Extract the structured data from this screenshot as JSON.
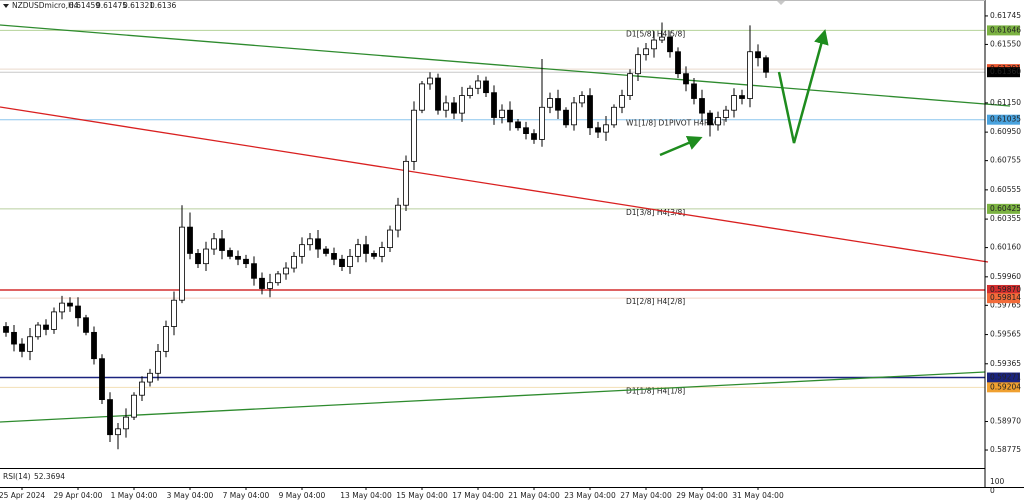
{
  "chart_data": {
    "type": "candlestick",
    "symbol": "NZDUSDmicro,H4",
    "ylim": [
      0.58652,
      0.61854
    ],
    "yticks": [
      0.61745,
      {
        "value": 0.6155,
        "label": "0.61550"
      },
      {
        "value": 0.6115,
        "label": "0.61150"
      },
      {
        "value": 0.6095,
        "label": "0.60950"
      },
      0.60755,
      0.60555,
      0.60355,
      {
        "value": 0.6016,
        "label": "0.60160"
      },
      {
        "value": 0.5996,
        "label": "0.59960"
      },
      0.59765,
      0.59565,
      0.59365,
      {
        "value": 0.5897,
        "label": "0.58970"
      },
      0.58775
    ],
    "categories": [
      null,
      null,
      "25 Apr 2024",
      null,
      null,
      null,
      null,
      null,
      null,
      "29 Apr 04:00",
      null,
      null,
      null,
      null,
      null,
      null,
      "1 May 04:00",
      null,
      null,
      null,
      null,
      null,
      null,
      "3 May 04:00",
      null,
      null,
      null,
      null,
      null,
      null,
      "7 May 04:00",
      null,
      null,
      null,
      null,
      null,
      null,
      "9 May 04:00",
      null,
      null,
      null,
      null,
      null,
      null,
      null,
      "13 May 04:00",
      null,
      null,
      null,
      null,
      null,
      null,
      "15 May 04:00",
      null,
      null,
      null,
      null,
      null,
      null,
      "17 May 04:00",
      null,
      null,
      null,
      null,
      null,
      null,
      "21 May 04:00",
      null,
      null,
      null,
      null,
      null,
      null,
      "23 May 04:00",
      null,
      null,
      null,
      null,
      null,
      null,
      "27 May 04:00",
      null,
      null,
      null,
      null,
      null,
      null,
      "29 May 04:00",
      null,
      null,
      null,
      null,
      null,
      null,
      "31 May 04:00",
      null
    ],
    "open": [
      0.5962,
      0.5958,
      0.595,
      0.5945,
      0.5955,
      0.5963,
      0.596,
      0.5972,
      0.5978,
      0.5976,
      0.5968,
      0.5958,
      0.594,
      0.5912,
      0.5888,
      0.5892,
      0.59,
      0.5915,
      0.5924,
      0.593,
      0.5945,
      0.5962,
      0.598,
      0.603,
      0.6012,
      0.6005,
      0.6015,
      0.6022,
      0.6014,
      0.601,
      0.6008,
      0.6005,
      0.5995,
      0.5988,
      0.5992,
      0.5998,
      0.6002,
      0.601,
      0.6018,
      0.6022,
      0.6015,
      0.6012,
      0.6008,
      0.6003,
      0.601,
      0.6018,
      0.6012,
      0.601,
      0.6016,
      0.6028,
      0.6045,
      0.6075,
      0.611,
      0.6128,
      0.6132,
      0.611,
      0.6115,
      0.6108,
      0.612,
      0.6125,
      0.613,
      0.6122,
      0.6105,
      0.611,
      0.6102,
      0.6098,
      0.6094,
      0.609,
      0.6112,
      0.6118,
      0.611,
      0.61,
      0.6115,
      0.612,
      0.6098,
      0.6095,
      0.61,
      0.6112,
      0.612,
      0.6135,
      0.6148,
      0.6152,
      0.6158,
      0.616,
      0.615,
      0.6135,
      0.6128,
      0.6118,
      0.6108,
      0.61,
      0.6105,
      0.611,
      0.612,
      0.6118,
      0.615,
      0.61459
    ],
    "high": [
      0.5965,
      0.5963,
      0.5954,
      0.5961,
      0.5965,
      0.5967,
      0.5975,
      0.5983,
      0.5982,
      0.5982,
      0.597,
      0.5962,
      0.5943,
      0.5917,
      0.5896,
      0.5906,
      0.5917,
      0.5928,
      0.5933,
      0.595,
      0.5966,
      0.5986,
      0.6045,
      0.604,
      0.6015,
      0.602,
      0.6026,
      0.6028,
      0.6016,
      0.6014,
      0.6011,
      0.601,
      0.5999,
      0.5998,
      0.6,
      0.6006,
      0.6013,
      0.6023,
      0.6026,
      0.6028,
      0.6017,
      0.6016,
      0.6011,
      0.6015,
      0.6022,
      0.6024,
      0.6014,
      0.602,
      0.6031,
      0.605,
      0.6079,
      0.6116,
      0.613,
      0.6136,
      0.6135,
      0.612,
      0.6119,
      0.6126,
      0.6127,
      0.6134,
      0.6133,
      0.6127,
      0.6114,
      0.6116,
      0.6104,
      0.6102,
      0.6097,
      0.6145,
      0.6122,
      0.6124,
      0.6112,
      0.6119,
      0.6123,
      0.6125,
      0.6102,
      0.6106,
      0.6114,
      0.6124,
      0.6138,
      0.6153,
      0.6156,
      0.6164,
      0.617,
      0.6164,
      0.6153,
      0.614,
      0.6132,
      0.6124,
      0.611,
      0.6109,
      0.6113,
      0.6125,
      0.6124,
      0.6168,
      0.6155,
      0.61475
    ],
    "low": [
      0.5955,
      0.5945,
      0.5941,
      0.5939,
      0.5953,
      0.5956,
      0.5957,
      0.5967,
      0.5972,
      0.5962,
      0.5956,
      0.5936,
      0.5909,
      0.5883,
      0.5878,
      0.5886,
      0.5898,
      0.5911,
      0.5921,
      0.5925,
      0.5941,
      0.5956,
      0.5978,
      0.6008,
      0.6002,
      0.6,
      0.6011,
      0.6008,
      0.6008,
      0.6004,
      0.6002,
      0.599,
      0.5984,
      0.5982,
      0.599,
      0.5994,
      0.5999,
      0.6005,
      0.6014,
      0.6009,
      0.601,
      0.6004,
      0.6,
      0.5998,
      0.6006,
      0.6006,
      0.6008,
      0.6006,
      0.6013,
      0.6023,
      0.6041,
      0.6069,
      0.6108,
      0.6124,
      0.6107,
      0.6105,
      0.6104,
      0.6102,
      0.6118,
      0.6121,
      0.6119,
      0.61,
      0.6101,
      0.6096,
      0.6096,
      0.609,
      0.6087,
      0.6085,
      0.6108,
      0.6104,
      0.6098,
      0.6096,
      0.6112,
      0.6093,
      0.6091,
      0.6089,
      0.6098,
      0.6108,
      0.6117,
      0.613,
      0.6144,
      0.6146,
      0.6156,
      0.6146,
      0.6132,
      0.6123,
      0.6114,
      0.6102,
      0.6092,
      0.6096,
      0.6102,
      0.6105,
      0.6114,
      0.6112,
      0.614,
      0.61321
    ],
    "close": [
      0.5958,
      0.595,
      0.5945,
      0.5955,
      0.5963,
      0.596,
      0.5972,
      0.5978,
      0.5976,
      0.5968,
      0.5958,
      0.594,
      0.5912,
      0.5888,
      0.5892,
      0.59,
      0.5915,
      0.5924,
      0.593,
      0.5945,
      0.5962,
      0.598,
      0.603,
      0.6012,
      0.6005,
      0.6015,
      0.6022,
      0.6014,
      0.601,
      0.6008,
      0.6005,
      0.5995,
      0.5988,
      0.5992,
      0.5998,
      0.6002,
      0.601,
      0.6018,
      0.6022,
      0.6015,
      0.6012,
      0.6008,
      0.6003,
      0.601,
      0.6018,
      0.6012,
      0.601,
      0.6016,
      0.6028,
      0.6045,
      0.6075,
      0.611,
      0.6128,
      0.6132,
      0.611,
      0.6115,
      0.6108,
      0.612,
      0.6125,
      0.613,
      0.6122,
      0.6105,
      0.611,
      0.6102,
      0.6098,
      0.6094,
      0.609,
      0.6112,
      0.6118,
      0.611,
      0.61,
      0.6115,
      0.612,
      0.6098,
      0.6095,
      0.61,
      0.6112,
      0.612,
      0.6135,
      0.6148,
      0.6152,
      0.6158,
      0.616,
      0.615,
      0.6135,
      0.6128,
      0.6118,
      0.6108,
      0.61,
      0.6105,
      0.611,
      0.612,
      0.6118,
      0.615,
      0.61459,
      0.6136
    ],
    "levels": [
      {
        "value": 0.61646,
        "color": "#7cb342",
        "line_color": "#b5d39a",
        "text": "D1[5/8] H4[5/8]",
        "text_color": "#6b8e23"
      },
      {
        "value": 0.61381,
        "color": "#e8542c",
        "line_color": "#ead9cc"
      },
      {
        "value": 0.6136,
        "label": "0.61360",
        "color": "#000000",
        "line_color": "#c8c8c8"
      },
      {
        "value": 0.61035,
        "color": "#4aa3df",
        "line_color": "#8cc6ee",
        "text": "W1[1/8] D1PIVOT H4PIVOT",
        "text_color": "#3b8ccc"
      },
      {
        "value": 0.60425,
        "color": "#7cb342",
        "line_color": "#b9cf9f",
        "text": "D1[3/8] H4[3/8]",
        "text_color": "#6b8e23"
      },
      {
        "value": 0.5987,
        "label": "0.59870",
        "color": "#d32f2f",
        "line_color": "#d32f2f"
      },
      {
        "value": 0.59814,
        "color": "#f26b3a",
        "line_color": "#f2d3c4",
        "text": "D1[2/8] H4[2/8]",
        "text_color": "#e0582a"
      },
      {
        "value": 0.59271,
        "color": "#1a237e",
        "line_color": "#1a237e"
      },
      {
        "value": 0.59204,
        "color": "#f0a030",
        "line_color": "#f3dfb4",
        "text": "D1[1/8] H4[1/8]",
        "text_color": "#e8a030"
      }
    ],
    "rsi": {
      "name": "RSI(14)",
      "value": 52.3694,
      "ylim": [
        0,
        100
      ],
      "yticks": [
        100,
        0
      ]
    }
  }
}
